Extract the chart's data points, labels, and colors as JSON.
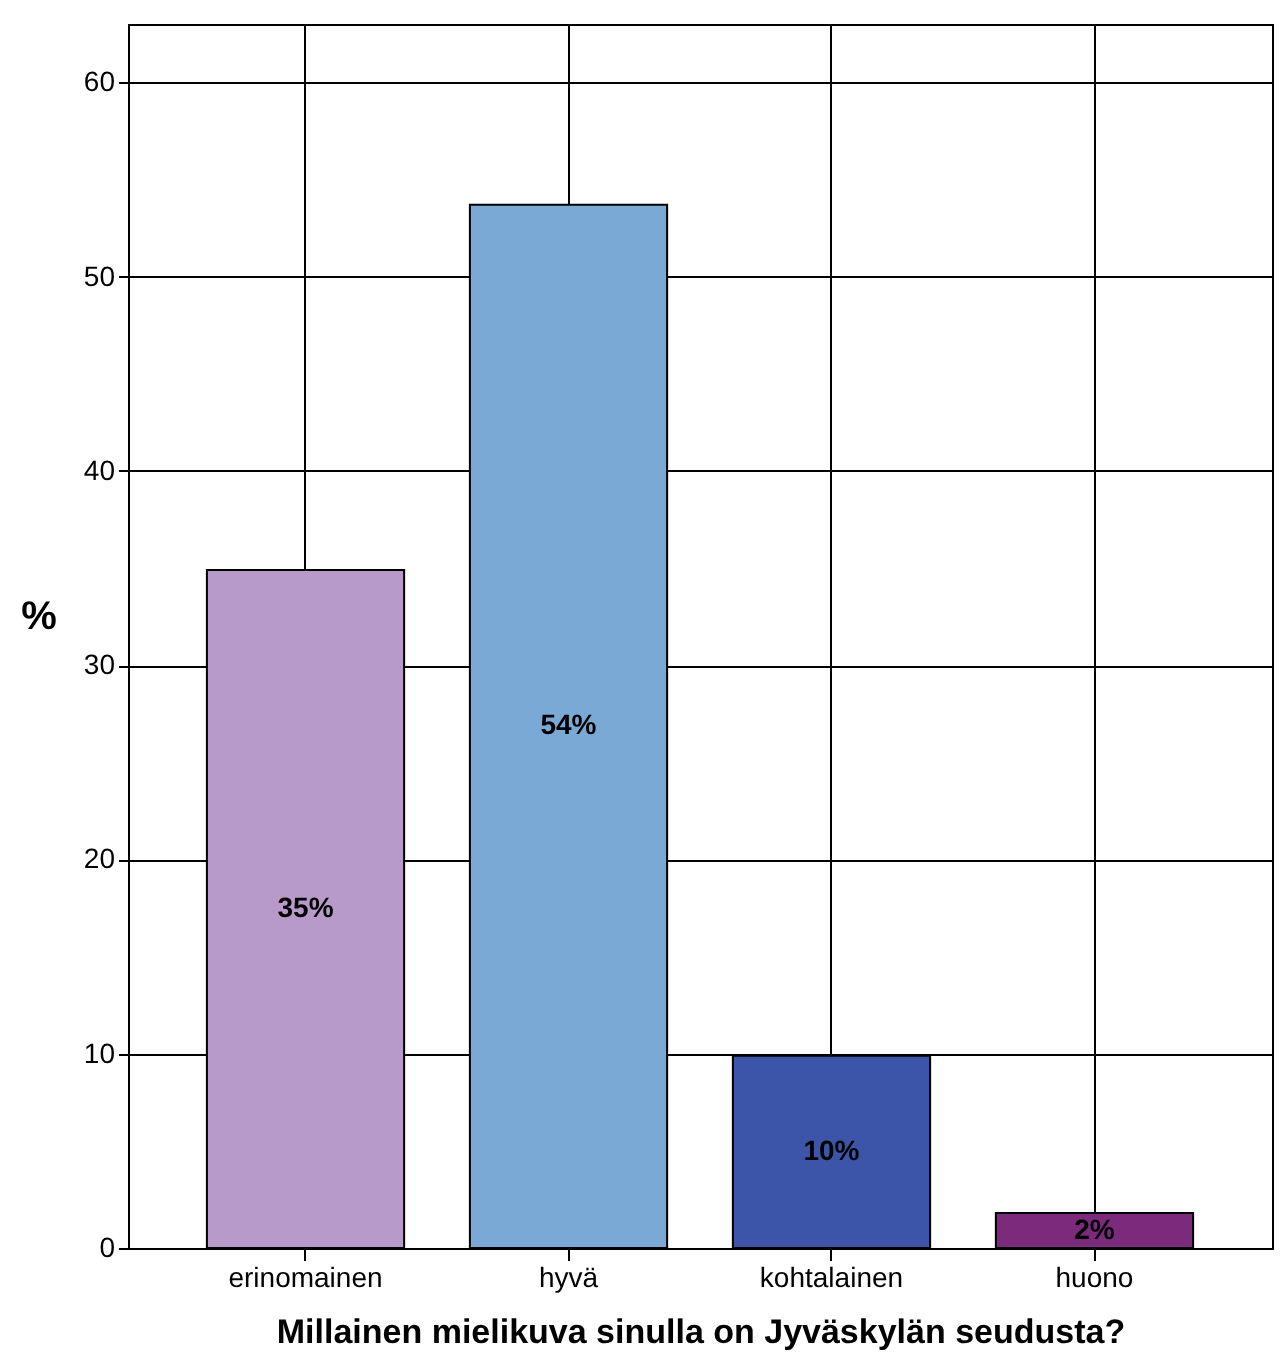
{
  "chart_data": {
    "type": "bar",
    "xlabel": "Millainen mielikuva sinulla on Jyväskylän seudusta?",
    "ylabel": "%",
    "categories": [
      "erinomainen",
      "hyvä",
      "kohtalainen",
      "huono"
    ],
    "values": [
      34.9,
      53.7,
      9.9,
      1.8
    ],
    "colors": [
      "#b79ac9",
      "#7ba9d6",
      "#3d55a8",
      "#7b2a7c"
    ],
    "value_labels": [
      "35%",
      "54%",
      "10%",
      "2%"
    ],
    "ylim": [
      0,
      63
    ],
    "yticks": [
      0,
      10,
      20,
      30,
      40,
      50,
      60
    ],
    "grid": true
  }
}
